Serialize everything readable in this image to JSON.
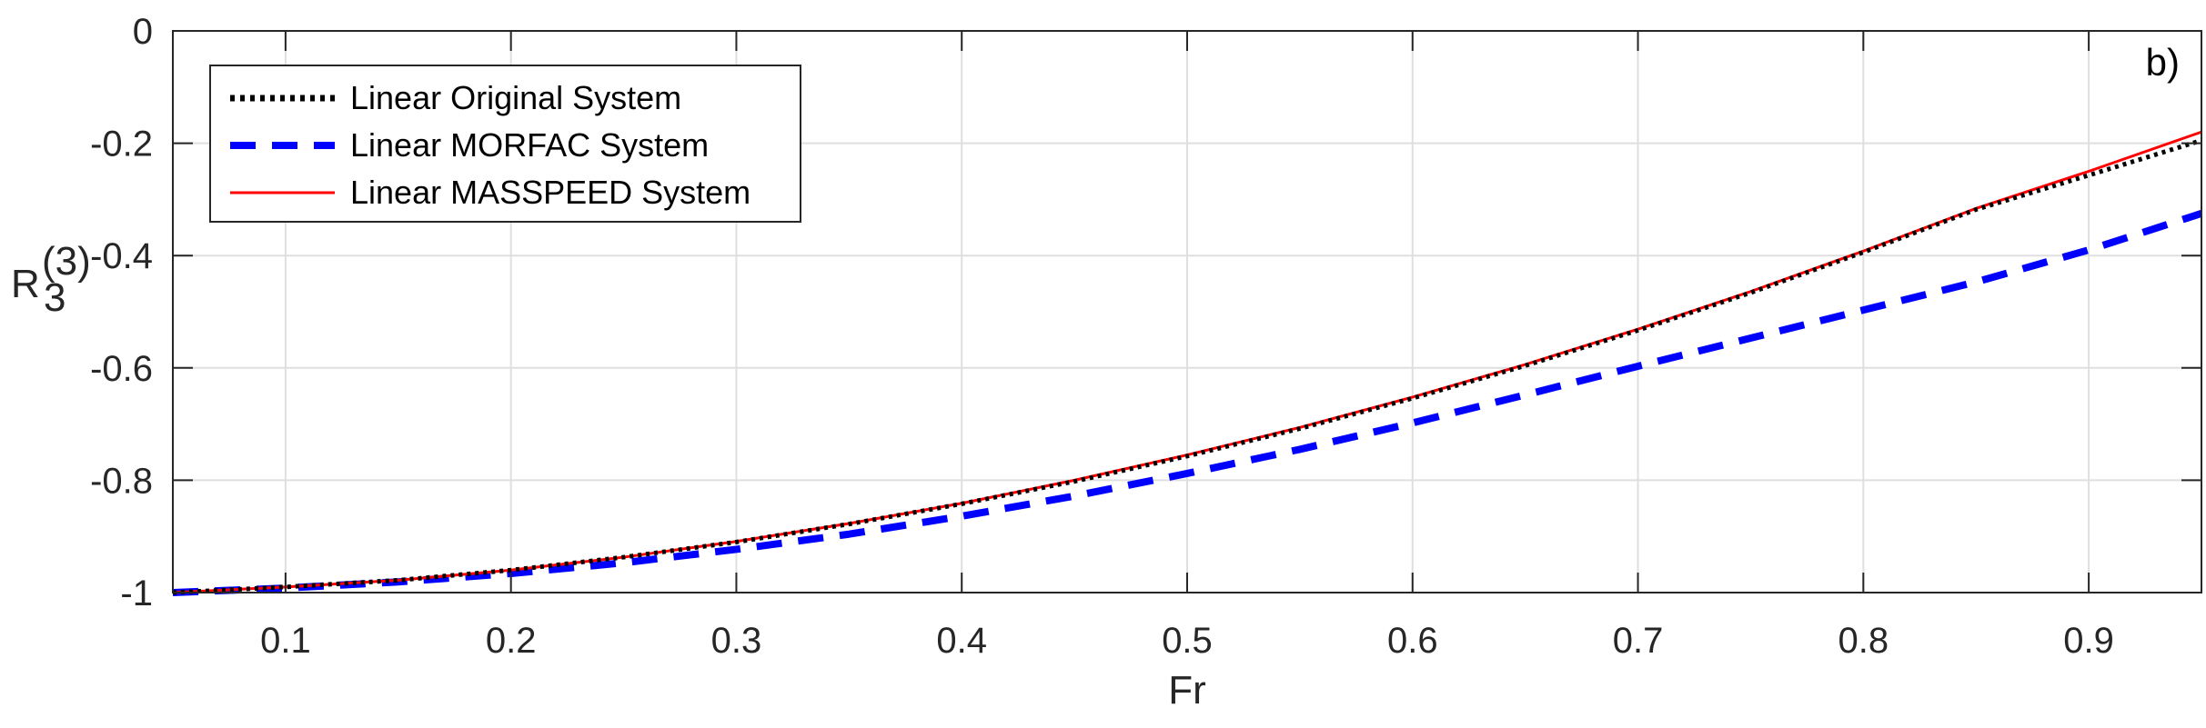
{
  "chart_data": {
    "type": "line",
    "panel_label": "b)",
    "xlabel": "Fr",
    "ylabel": {
      "base": "R",
      "subscript": "3",
      "superscript": "(3)"
    },
    "xlim": [
      0.05,
      0.95
    ],
    "ylim": [
      -1,
      0
    ],
    "xticks": [
      0.1,
      0.2,
      0.3,
      0.4,
      0.5,
      0.6,
      0.7,
      0.8,
      0.9
    ],
    "xtick_labels": [
      "0.1",
      "0.2",
      "0.3",
      "0.4",
      "0.5",
      "0.6",
      "0.7",
      "0.8",
      "0.9"
    ],
    "yticks": [
      0,
      -0.2,
      -0.4,
      -0.6,
      -0.8,
      -1
    ],
    "ytick_labels": [
      "0",
      "-0.2",
      "-0.4",
      "-0.6",
      "-0.8",
      "-1"
    ],
    "grid": true,
    "legend_position": "top-left",
    "x": [
      0.05,
      0.1,
      0.15,
      0.2,
      0.25,
      0.3,
      0.35,
      0.4,
      0.45,
      0.5,
      0.55,
      0.6,
      0.65,
      0.7,
      0.75,
      0.8,
      0.85,
      0.9,
      0.95
    ],
    "series": [
      {
        "name": "Linear Original System",
        "style": "dotted",
        "color": "#000000",
        "values": [
          -1.0,
          -0.99,
          -0.978,
          -0.96,
          -0.937,
          -0.91,
          -0.878,
          -0.842,
          -0.802,
          -0.757,
          -0.708,
          -0.654,
          -0.596,
          -0.533,
          -0.466,
          -0.394,
          -0.318,
          -0.257,
          -0.195
        ]
      },
      {
        "name": "Linear MORFAC System",
        "style": "dashed",
        "color": "#0000ff",
        "values": [
          -1.0,
          -0.992,
          -0.981,
          -0.966,
          -0.947,
          -0.923,
          -0.896,
          -0.864,
          -0.828,
          -0.788,
          -0.745,
          -0.698,
          -0.648,
          -0.597,
          -0.547,
          -0.497,
          -0.447,
          -0.39,
          -0.325
        ]
      },
      {
        "name": "Linear MASSPEED System",
        "style": "solid",
        "color": "#ff0000",
        "values": [
          -1.0,
          -0.99,
          -0.978,
          -0.96,
          -0.937,
          -0.909,
          -0.877,
          -0.841,
          -0.8,
          -0.755,
          -0.706,
          -0.652,
          -0.594,
          -0.531,
          -0.464,
          -0.392,
          -0.316,
          -0.25,
          -0.18
        ]
      }
    ]
  }
}
